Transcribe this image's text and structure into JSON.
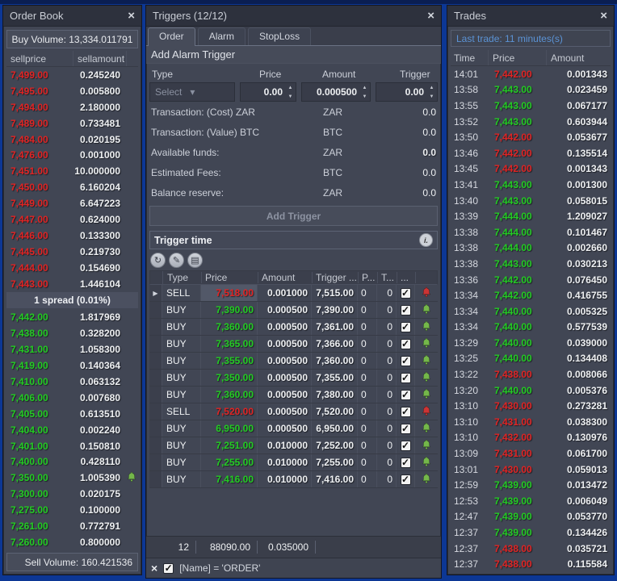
{
  "colors": {
    "accent_red": "#e02424",
    "accent_green": "#23cb23",
    "accent_blue": "#5b93d5",
    "bell_red": "#cc3434",
    "bell_green": "#74b74a",
    "background_blue": "#0c3795",
    "panel": "#414654"
  },
  "icons": {
    "close": "×",
    "dropdown": "▾",
    "spin_up": "▲",
    "spin_down": "▼",
    "selector": "▶",
    "check": "✓",
    "refresh": "↻",
    "edit": "✎",
    "list": "▤",
    "info": "i.",
    "filter_close": "×"
  },
  "order_book": {
    "title": "Order Book",
    "buy_volume": "Buy Volume: 13,334.011791",
    "sell_volume": "Sell Volume: 160.421536",
    "col_price": "sellprice",
    "col_amount": "sellamount",
    "spread": "1 spread (0.01%)",
    "sells": [
      [
        "7,499.00",
        "0.245240"
      ],
      [
        "7,495.00",
        "0.005800"
      ],
      [
        "7,494.00",
        "2.180000"
      ],
      [
        "7,489.00",
        "0.733481"
      ],
      [
        "7,484.00",
        "0.020195"
      ],
      [
        "7,476.00",
        "0.001000"
      ],
      [
        "7,451.00",
        "10.000000"
      ],
      [
        "7,450.00",
        "6.160204"
      ],
      [
        "7,449.00",
        "6.647223"
      ],
      [
        "7,447.00",
        "0.624000"
      ],
      [
        "7,446.00",
        "0.133300"
      ],
      [
        "7,445.00",
        "0.219730"
      ],
      [
        "7,444.00",
        "0.154690"
      ],
      [
        "7,443.00",
        "1.446104"
      ]
    ],
    "buys": [
      [
        "7,442.00",
        "1.817969",
        ""
      ],
      [
        "7,438.00",
        "0.328200",
        ""
      ],
      [
        "7,431.00",
        "1.058300",
        ""
      ],
      [
        "7,419.00",
        "0.140364",
        ""
      ],
      [
        "7,410.00",
        "0.063132",
        ""
      ],
      [
        "7,406.00",
        "0.007680",
        ""
      ],
      [
        "7,405.00",
        "0.613510",
        ""
      ],
      [
        "7,404.00",
        "0.002240",
        ""
      ],
      [
        "7,401.00",
        "0.150810",
        ""
      ],
      [
        "7,400.00",
        "0.428110",
        ""
      ],
      [
        "7,350.00",
        "1.005390",
        "bell"
      ],
      [
        "7,300.00",
        "0.020175",
        ""
      ],
      [
        "7,275.00",
        "0.100000",
        ""
      ],
      [
        "7,261.00",
        "0.772791",
        ""
      ],
      [
        "7,260.00",
        "0.800000",
        ""
      ]
    ]
  },
  "triggers": {
    "title": "Triggers (12/12)",
    "tabs": [
      "Order",
      "Alarm",
      "StopLoss"
    ],
    "section_title": "Add Alarm Trigger",
    "form": {
      "type_label": "Type",
      "price_label": "Price",
      "amount_label": "Amount",
      "trigger_label": "Trigger",
      "type_value": "Select",
      "price_value": "0.00",
      "amount_value": "0.000500",
      "trigger_value": "0.00"
    },
    "info_rows": [
      {
        "label": "Transaction: (Cost) ZAR",
        "currency": "ZAR",
        "value": "0.0",
        "style": "normal"
      },
      {
        "label": "Transaction: (Value) BTC",
        "currency": "BTC",
        "value": "0.0",
        "style": "normal"
      },
      {
        "label": "Available funds:",
        "currency": "ZAR",
        "value": "0.0",
        "style": "blue-bold"
      },
      {
        "label": "Estimated Fees:",
        "currency": "BTC",
        "value": "0.0",
        "style": "normal"
      },
      {
        "label": "Balance reserve:",
        "currency": "ZAR",
        "value": "0.0",
        "style": "blue-dim"
      }
    ],
    "add_button": "Add Trigger",
    "grid_title": "Trigger time",
    "grid_columns": {
      "type": "Type",
      "price": "Price",
      "amount": "Amount",
      "trigger": "Trigger ...",
      "p": "P...",
      "t": "T...",
      "chk": "..."
    },
    "rows": [
      {
        "type": "SELL",
        "price": "7,518.00",
        "amount": "0.001000",
        "trigger": "7,515.00",
        "p": "0",
        "t": "0",
        "bell": "red",
        "checked": true,
        "selected": true
      },
      {
        "type": "BUY",
        "price": "7,390.00",
        "amount": "0.000500",
        "trigger": "7,390.00",
        "p": "0",
        "t": "0",
        "bell": "green",
        "checked": true,
        "selected": false
      },
      {
        "type": "BUY",
        "price": "7,360.00",
        "amount": "0.000500",
        "trigger": "7,361.00",
        "p": "0",
        "t": "0",
        "bell": "green",
        "checked": true,
        "selected": false
      },
      {
        "type": "BUY",
        "price": "7,365.00",
        "amount": "0.000500",
        "trigger": "7,366.00",
        "p": "0",
        "t": "0",
        "bell": "green",
        "checked": true,
        "selected": false
      },
      {
        "type": "BUY",
        "price": "7,355.00",
        "amount": "0.000500",
        "trigger": "7,360.00",
        "p": "0",
        "t": "0",
        "bell": "green",
        "checked": true,
        "selected": false
      },
      {
        "type": "BUY",
        "price": "7,350.00",
        "amount": "0.000500",
        "trigger": "7,355.00",
        "p": "0",
        "t": "0",
        "bell": "green",
        "checked": true,
        "selected": false
      },
      {
        "type": "BUY",
        "price": "7,360.00",
        "amount": "0.000500",
        "trigger": "7,380.00",
        "p": "0",
        "t": "0",
        "bell": "green",
        "checked": true,
        "selected": false
      },
      {
        "type": "SELL",
        "price": "7,520.00",
        "amount": "0.000500",
        "trigger": "7,520.00",
        "p": "0",
        "t": "0",
        "bell": "red",
        "checked": true,
        "selected": false
      },
      {
        "type": "BUY",
        "price": "6,950.00",
        "amount": "0.000500",
        "trigger": "6,950.00",
        "p": "0",
        "t": "0",
        "bell": "green",
        "checked": true,
        "selected": false
      },
      {
        "type": "BUY",
        "price": "7,251.00",
        "amount": "0.010000",
        "trigger": "7,252.00",
        "p": "0",
        "t": "0",
        "bell": "green",
        "checked": true,
        "selected": false
      },
      {
        "type": "BUY",
        "price": "7,255.00",
        "amount": "0.010000",
        "trigger": "7,255.00",
        "p": "0",
        "t": "0",
        "bell": "green",
        "checked": true,
        "selected": false
      },
      {
        "type": "BUY",
        "price": "7,416.00",
        "amount": "0.010000",
        "trigger": "7,416.00",
        "p": "0",
        "t": "0",
        "bell": "green",
        "checked": true,
        "selected": false
      }
    ],
    "summary": {
      "count": "12",
      "price_sum": "88090.00",
      "amount_sum": "0.035000"
    },
    "filter_text": "[Name] = 'ORDER'"
  },
  "trades": {
    "title": "Trades",
    "last_trade": "Last trade: 11 minutes(s)",
    "col_time": "Time",
    "col_price": "Price",
    "col_amount": "Amount",
    "rows": [
      {
        "time": "14:01",
        "price": "7,442.00",
        "amount": "0.001343",
        "dir": "down"
      },
      {
        "time": "13:58",
        "price": "7,443.00",
        "amount": "0.023459",
        "dir": "up"
      },
      {
        "time": "13:55",
        "price": "7,443.00",
        "amount": "0.067177",
        "dir": "up"
      },
      {
        "time": "13:52",
        "price": "7,443.00",
        "amount": "0.603944",
        "dir": "up"
      },
      {
        "time": "13:50",
        "price": "7,442.00",
        "amount": "0.053677",
        "dir": "down"
      },
      {
        "time": "13:46",
        "price": "7,442.00",
        "amount": "0.135514",
        "dir": "down"
      },
      {
        "time": "13:45",
        "price": "7,442.00",
        "amount": "0.001343",
        "dir": "down"
      },
      {
        "time": "13:41",
        "price": "7,443.00",
        "amount": "0.001300",
        "dir": "up"
      },
      {
        "time": "13:40",
        "price": "7,443.00",
        "amount": "0.058015",
        "dir": "up"
      },
      {
        "time": "13:39",
        "price": "7,444.00",
        "amount": "1.209027",
        "dir": "up"
      },
      {
        "time": "13:38",
        "price": "7,444.00",
        "amount": "0.101467",
        "dir": "up"
      },
      {
        "time": "13:38",
        "price": "7,444.00",
        "amount": "0.002660",
        "dir": "up"
      },
      {
        "time": "13:38",
        "price": "7,443.00",
        "amount": "0.030213",
        "dir": "up"
      },
      {
        "time": "13:36",
        "price": "7,442.00",
        "amount": "0.076450",
        "dir": "up"
      },
      {
        "time": "13:34",
        "price": "7,442.00",
        "amount": "0.416755",
        "dir": "up"
      },
      {
        "time": "13:34",
        "price": "7,440.00",
        "amount": "0.005325",
        "dir": "up"
      },
      {
        "time": "13:34",
        "price": "7,440.00",
        "amount": "0.577539",
        "dir": "up"
      },
      {
        "time": "13:29",
        "price": "7,440.00",
        "amount": "0.039000",
        "dir": "up"
      },
      {
        "time": "13:25",
        "price": "7,440.00",
        "amount": "0.134408",
        "dir": "up"
      },
      {
        "time": "13:22",
        "price": "7,438.00",
        "amount": "0.008066",
        "dir": "down"
      },
      {
        "time": "13:20",
        "price": "7,440.00",
        "amount": "0.005376",
        "dir": "up"
      },
      {
        "time": "13:10",
        "price": "7,430.00",
        "amount": "0.273281",
        "dir": "down"
      },
      {
        "time": "13:10",
        "price": "7,431.00",
        "amount": "0.038300",
        "dir": "down"
      },
      {
        "time": "13:10",
        "price": "7,432.00",
        "amount": "0.130976",
        "dir": "down"
      },
      {
        "time": "13:09",
        "price": "7,431.00",
        "amount": "0.061700",
        "dir": "down"
      },
      {
        "time": "13:01",
        "price": "7,430.00",
        "amount": "0.059013",
        "dir": "down"
      },
      {
        "time": "12:59",
        "price": "7,439.00",
        "amount": "0.013472",
        "dir": "up"
      },
      {
        "time": "12:53",
        "price": "7,439.00",
        "amount": "0.006049",
        "dir": "up"
      },
      {
        "time": "12:47",
        "price": "7,439.00",
        "amount": "0.053770",
        "dir": "up"
      },
      {
        "time": "12:37",
        "price": "7,439.00",
        "amount": "0.134426",
        "dir": "up"
      },
      {
        "time": "12:37",
        "price": "7,438.00",
        "amount": "0.035721",
        "dir": "down"
      },
      {
        "time": "12:37",
        "price": "7,438.00",
        "amount": "0.115584",
        "dir": "down"
      }
    ]
  }
}
